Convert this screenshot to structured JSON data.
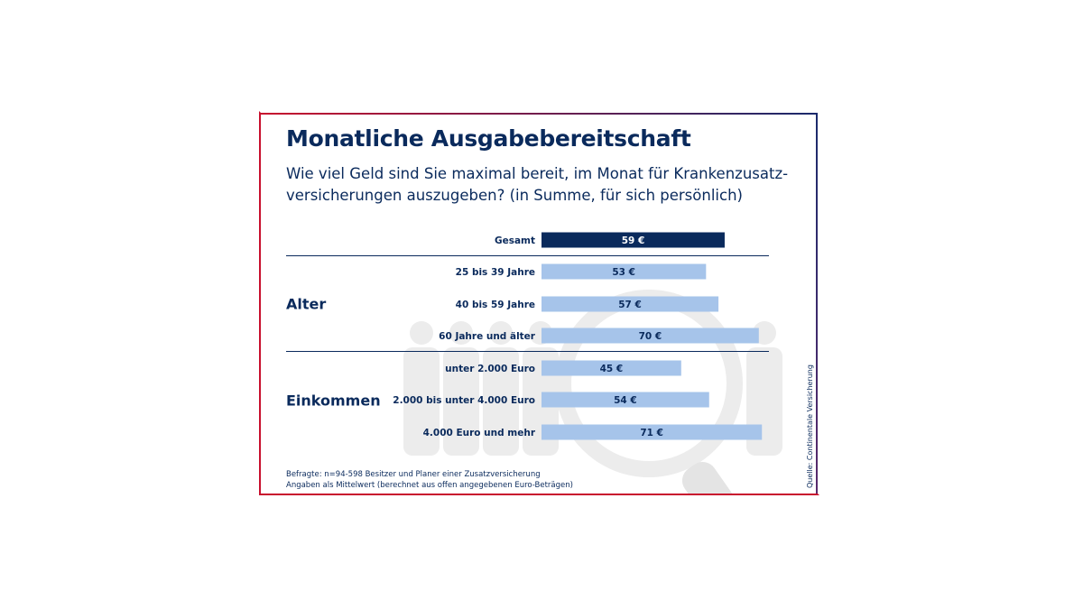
{
  "title": "Monatliche Ausgabebereitschaft",
  "subtitle": "Wie viel Geld sind Sie maximal bereit, im Monat für Krankenzusatz-versicherungen auszugeben? (in Summe, für sich persönlich)",
  "notes": [
    "Befragte: n=94-598 Besitzer und Planer einer Zusatzversicherung",
    "Angaben als Mittelwert (berechnet aus offen angegebenen Euro-Beträgen)"
  ],
  "source": "Quelle: Continentale Versicherung",
  "colors": {
    "highlight": "#0a2a5c",
    "bar": "#a6c4ea",
    "text": "#0a2a5c",
    "deco": "#e9e9e9"
  },
  "chart_data": {
    "type": "bar",
    "orientation": "horizontal",
    "unit": "€",
    "xlim": [
      0,
      75
    ],
    "categories": [
      "Gesamt",
      "25 bis 39 Jahre",
      "40 bis 59 Jahre",
      "60 Jahre und älter",
      "unter 2.000 Euro",
      "2.000 bis unter 4.000 Euro",
      "4.000 Euro und mehr"
    ],
    "values": [
      59,
      53,
      57,
      70,
      45,
      54,
      71
    ],
    "value_labels": [
      "59 €",
      "53 €",
      "57 €",
      "70 €",
      "45 €",
      "54 €",
      "71 €"
    ],
    "highlight_index": 0,
    "groups": [
      {
        "name": "Alter",
        "indices": [
          1,
          2,
          3
        ]
      },
      {
        "name": "Einkommen",
        "indices": [
          4,
          5,
          6
        ]
      }
    ]
  }
}
